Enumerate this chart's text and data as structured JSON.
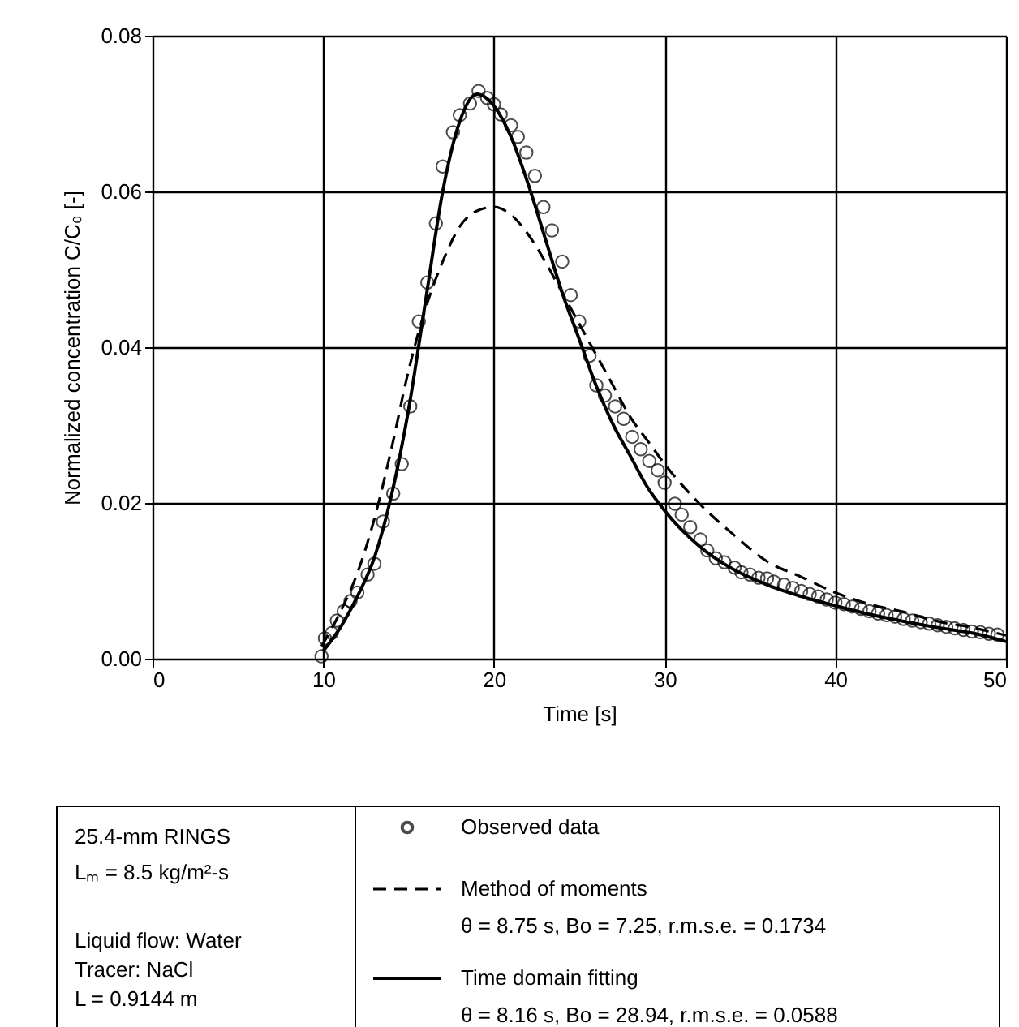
{
  "chart_data": {
    "type": "line",
    "xlabel": "Time [s]",
    "ylabel": "Normalized concentration C/C₀ [-]",
    "xlim": [
      0,
      50
    ],
    "xticks": [
      0,
      10,
      20,
      30,
      40,
      50
    ],
    "ylim": [
      0,
      0.08
    ],
    "yticks": [
      {
        "value": 0,
        "label": "0.00"
      },
      0.02,
      0.04,
      0.06,
      0.08
    ],
    "grid": true,
    "legend": "bottom",
    "annotations": [
      "25.4-mm RINGS",
      "Lₘ = 8.5 kg/m²-s",
      "Liquid flow: Water",
      "Tracer: NaCl",
      "L = 0.9144 m",
      "θ = 8.75 s, Bo = 7.25, r.m.s.e. = 0.1734",
      "θ = 8.16 s, Bo = 28.94, r.m.s.e. = 0.0588"
    ],
    "series": [
      {
        "name": "Observed data",
        "type": "scatter",
        "marker": "circle",
        "color": "#000000",
        "x": [
          9.9,
          10.1,
          10.5,
          10.8,
          11.2,
          11.6,
          12.0,
          12.6,
          13.0,
          13.5,
          14.1,
          14.6,
          15.1,
          15.6,
          16.1,
          16.6,
          17.0,
          17.6,
          18.0,
          18.6,
          19.1,
          19.6,
          20.0,
          20.4,
          21.0,
          21.4,
          21.9,
          22.4,
          22.9,
          23.4,
          24.0,
          24.5,
          25.0,
          25.6,
          26.0,
          26.5,
          27.1,
          27.6,
          28.1,
          28.6,
          29.1,
          29.6,
          30.0,
          30.6,
          31.0,
          31.5,
          32.1,
          32.5,
          33.0,
          33.5,
          34.1,
          34.5,
          35.0,
          35.5,
          36.0,
          36.4,
          37.0,
          37.5,
          38.0,
          38.5,
          39.0,
          39.5,
          40.0,
          40.5,
          41.0,
          41.5,
          42.0,
          42.5,
          43.0,
          43.5,
          44.0,
          44.5,
          45.0,
          45.5,
          46.0,
          46.5,
          47.0,
          47.5,
          48.0,
          48.5,
          49.0,
          49.5
        ],
        "values": [
          0.0003,
          0.0026,
          0.0033,
          0.0049,
          0.0061,
          0.0074,
          0.0085,
          0.0108,
          0.0122,
          0.0176,
          0.0212,
          0.025,
          0.0324,
          0.0433,
          0.0483,
          0.0559,
          0.0632,
          0.0676,
          0.0698,
          0.0713,
          0.0729,
          0.072,
          0.0712,
          0.0699,
          0.0685,
          0.067,
          0.065,
          0.062,
          0.058,
          0.055,
          0.051,
          0.0467,
          0.0433,
          0.0389,
          0.0351,
          0.0338,
          0.0324,
          0.0308,
          0.0285,
          0.0269,
          0.0254,
          0.0242,
          0.0226,
          0.0199,
          0.0185,
          0.0169,
          0.0153,
          0.0139,
          0.0129,
          0.0124,
          0.0117,
          0.0111,
          0.0108,
          0.0104,
          0.0103,
          0.0099,
          0.0095,
          0.0091,
          0.0087,
          0.0083,
          0.008,
          0.0076,
          0.0072,
          0.007,
          0.0067,
          0.0064,
          0.0061,
          0.0058,
          0.0056,
          0.0054,
          0.0051,
          0.0049,
          0.0047,
          0.0045,
          0.0043,
          0.0041,
          0.0039,
          0.0037,
          0.0035,
          0.0034,
          0.0032,
          0.0031
        ]
      },
      {
        "name": "Method of moments",
        "line_style": "dashed",
        "color": "#000000",
        "x": [
          9.9,
          11,
          12,
          13,
          14,
          15,
          16,
          17,
          18,
          19,
          20,
          21,
          22,
          23,
          24,
          25,
          26,
          27,
          28,
          29,
          30,
          32,
          34,
          36,
          38,
          40,
          42,
          44,
          46,
          48,
          50
        ],
        "values": [
          0.0016,
          0.006,
          0.011,
          0.018,
          0.027,
          0.037,
          0.045,
          0.051,
          0.0555,
          0.0575,
          0.058,
          0.057,
          0.0545,
          0.051,
          0.047,
          0.043,
          0.039,
          0.035,
          0.031,
          0.028,
          0.025,
          0.02,
          0.016,
          0.0125,
          0.0105,
          0.0085,
          0.007,
          0.006,
          0.0048,
          0.004,
          0.003
        ]
      },
      {
        "name": "Time domain fitting",
        "line_style": "solid",
        "color": "#000000",
        "x": [
          10,
          11,
          12,
          13,
          14,
          15,
          16,
          17,
          18,
          19,
          20,
          21,
          22,
          23,
          24,
          25,
          26,
          27,
          28,
          29,
          30,
          32,
          34,
          36,
          38,
          40,
          42,
          44,
          46,
          48,
          50
        ],
        "values": [
          0.001,
          0.004,
          0.008,
          0.013,
          0.021,
          0.032,
          0.046,
          0.06,
          0.069,
          0.0725,
          0.071,
          0.067,
          0.061,
          0.054,
          0.047,
          0.041,
          0.035,
          0.03,
          0.026,
          0.022,
          0.019,
          0.0145,
          0.0115,
          0.0095,
          0.008,
          0.0068,
          0.0057,
          0.0048,
          0.004,
          0.0033,
          0.0022
        ]
      }
    ]
  }
}
